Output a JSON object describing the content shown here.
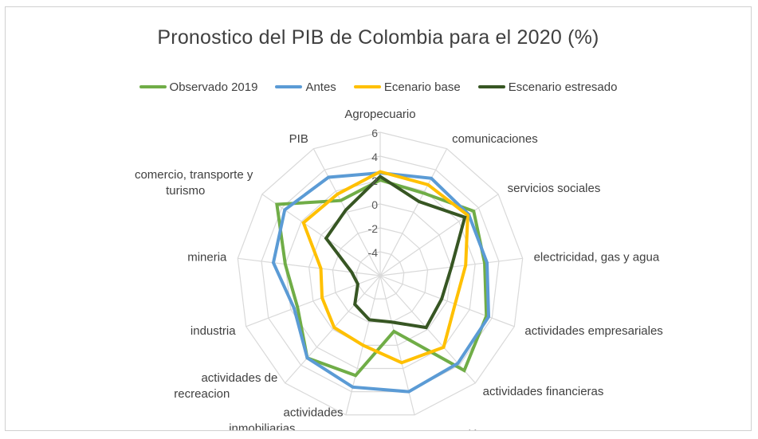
{
  "chart_data": {
    "type": "radar",
    "title": "Pronostico del PIB de Colombia para el 2020 (%)",
    "legend_position": "top",
    "grid": true,
    "rlim": [
      -6,
      6
    ],
    "ticks": [
      "6",
      "4",
      "2",
      "0",
      "-2",
      "-4"
    ],
    "tick_values": [
      6,
      4,
      2,
      0,
      -2,
      -4
    ],
    "categories": [
      "Agropecuario",
      "comunicaciones",
      "servicios sociales",
      "electricidad, gas y agua",
      "actividades empresariales",
      "actividades financieras",
      "construcción",
      "actividades inmobiliarias",
      "actividades de recreacion",
      "industria",
      "mineria",
      "comercio, transporte y turismo",
      "PIB"
    ],
    "series": [
      {
        "name": "Observado 2019",
        "color": "#70ad47",
        "values": [
          2.0,
          1.8,
          3.5,
          2.8,
          3.5,
          4.6,
          -1.2,
          2.6,
          3.2,
          1.4,
          2.0,
          4.5,
          1.1
        ]
      },
      {
        "name": "Antes",
        "color": "#5b9bd5",
        "values": [
          2.6,
          3.2,
          3.0,
          3.0,
          3.7,
          3.8,
          4.0,
          3.6,
          3.2,
          1.7,
          3.0,
          3.7,
          3.3
        ]
      },
      {
        "name": "Ecenario base",
        "color": "#ffc000",
        "values": [
          2.7,
          2.6,
          2.9,
          1.2,
          0.7,
          2.0,
          1.5,
          0.0,
          -0.2,
          -0.8,
          -1.0,
          1.8,
          1.7
        ]
      },
      {
        "name": "Escenario estresado",
        "color": "#375623",
        "values": [
          2.3,
          1.0,
          2.6,
          0.0,
          -0.5,
          -0.2,
          -2.0,
          -2.2,
          -2.8,
          -4.0,
          -3.6,
          -0.5,
          0.2
        ]
      }
    ]
  }
}
